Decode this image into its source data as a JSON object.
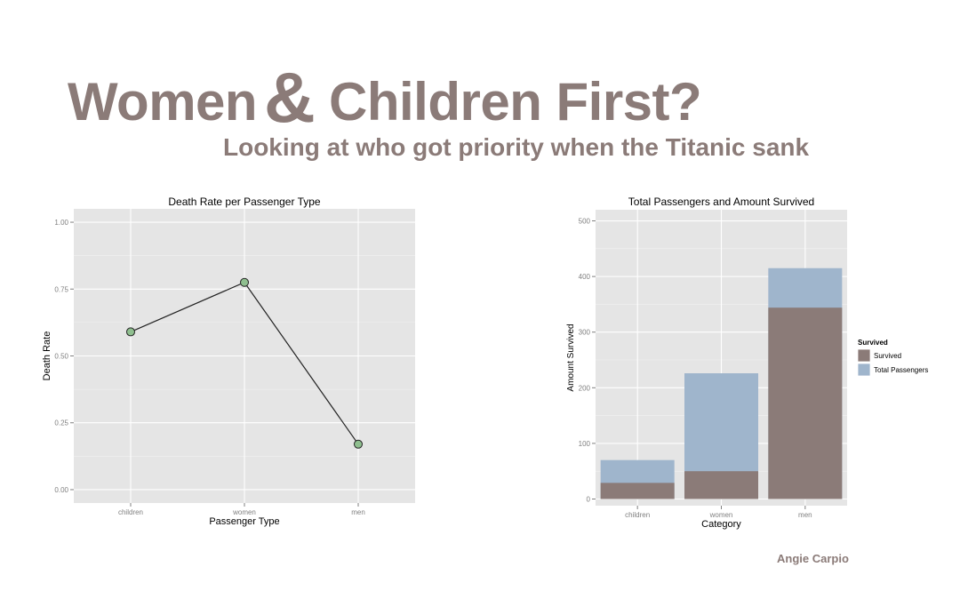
{
  "header": {
    "title_part1": "Women",
    "title_amp": "&",
    "title_part2": "Children First?",
    "subtitle": "Looking at who got priority when the Titanic sank"
  },
  "author": "Angie Carpio",
  "colors": {
    "panel_bg": "#e5e5e5",
    "grid": "#ffffff",
    "point_fill": "#8fbf8f",
    "line": "#222222",
    "survived": "#8b7b78",
    "total": "#9fb5cc",
    "header_text": "#8b7b78"
  },
  "chart_data": [
    {
      "type": "line",
      "title": "Death Rate per Passenger Type",
      "xlabel": "Passenger Type",
      "ylabel": "Death Rate",
      "categories": [
        "children",
        "women",
        "men"
      ],
      "values": [
        0.59,
        0.775,
        0.17
      ],
      "ylim": [
        -0.05,
        1.05
      ],
      "yticks": [
        0.0,
        0.25,
        0.5,
        0.75,
        1.0
      ],
      "ytick_labels": [
        "0.00",
        "0.25",
        "0.50",
        "0.75",
        "1.00"
      ],
      "grid": true
    },
    {
      "type": "bar",
      "title": "Total Passengers and Amount Survived",
      "xlabel": "Category",
      "ylabel": "Amount Survived",
      "categories": [
        "children",
        "women",
        "men"
      ],
      "series": [
        {
          "name": "Total Passengers",
          "values": [
            70,
            226,
            415
          ]
        },
        {
          "name": "Survived",
          "values": [
            29,
            50,
            344
          ]
        }
      ],
      "ylim": [
        -12,
        520
      ],
      "yticks": [
        0,
        100,
        200,
        300,
        400,
        500
      ],
      "ytick_labels": [
        "0",
        "100",
        "200",
        "300",
        "400",
        "500"
      ],
      "legend": {
        "title": "Survived",
        "entries": [
          "Survived",
          "Total Passengers"
        ],
        "position": "right"
      },
      "grid": true
    }
  ]
}
